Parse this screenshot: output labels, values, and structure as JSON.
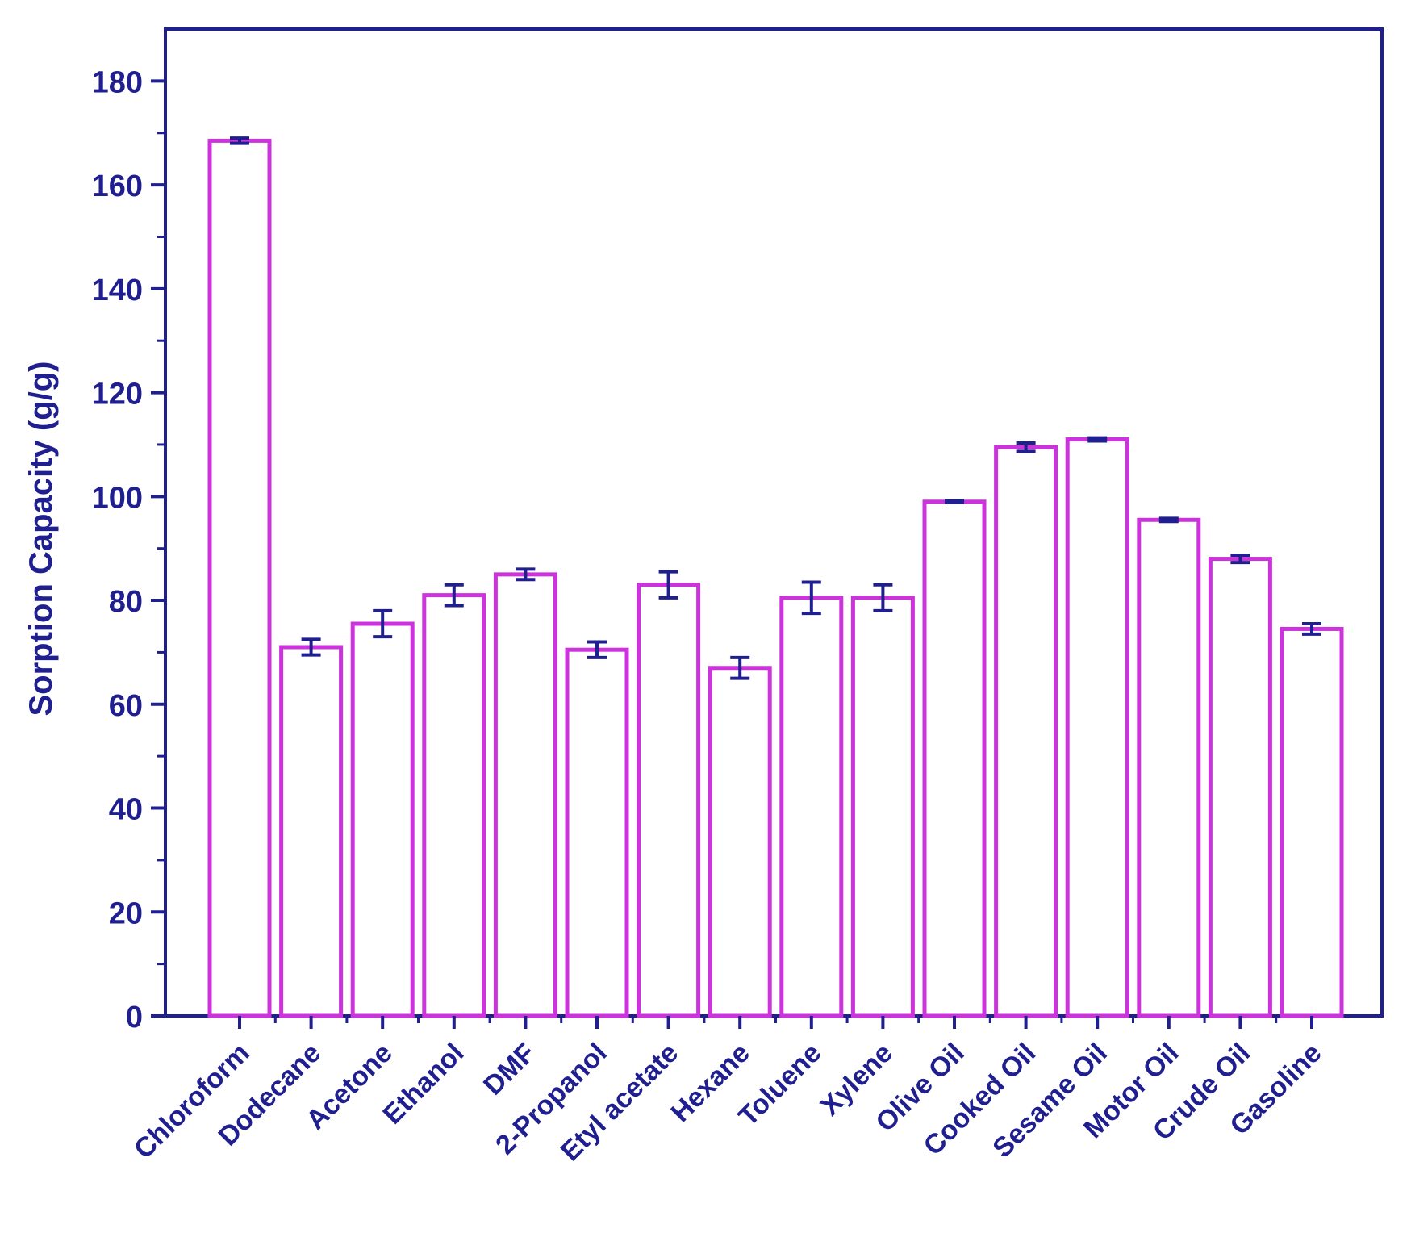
{
  "chart_data": {
    "type": "bar",
    "title": "",
    "xlabel": "",
    "ylabel": "Sorption Capacity (g/g)",
    "ylim": [
      0,
      190
    ],
    "yticks": [
      0,
      20,
      40,
      60,
      80,
      100,
      120,
      140,
      160,
      180
    ],
    "grid": false,
    "categories": [
      "Chloroform",
      "Dodecane",
      "Acetone",
      "Ethanol",
      "DMF",
      "2-Propanol",
      "Etyl acetate",
      "Hexane",
      "Toluene",
      "Xylene",
      "Olive Oil",
      "Cooked Oil",
      "Sesame Oil",
      "Motor Oil",
      "Crude Oil",
      "Gasoline"
    ],
    "values": [
      168.5,
      71,
      75.5,
      81,
      85,
      70.5,
      83,
      67,
      80.5,
      80.5,
      99,
      109.5,
      111,
      95.5,
      88,
      74.5
    ],
    "errors": [
      0.5,
      1.5,
      2.5,
      2.0,
      1.0,
      1.5,
      2.5,
      2.0,
      3.0,
      2.5,
      0.2,
      0.8,
      0.3,
      0.3,
      0.7,
      1.0
    ],
    "colors": {
      "bar_edge": "#cc33dd",
      "bar_fill": "#ffffff",
      "axis": "#1f1f8f",
      "error_bar": "#1f1f8f"
    }
  }
}
